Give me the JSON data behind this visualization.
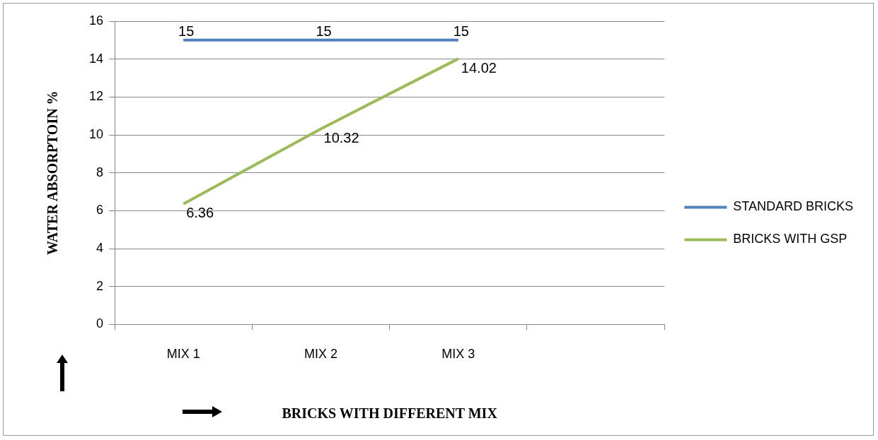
{
  "chart_data": {
    "type": "line",
    "xlabel": "BRICKS WITH DIFFERENT MIX",
    "ylabel": "WATER ABSORPTOIN %",
    "categories": [
      "MIX 1",
      "MIX 2",
      "MIX 3",
      null
    ],
    "series": [
      {
        "name": "STANDARD BRICKS",
        "color": "#4f81bd",
        "values": [
          15,
          15,
          15,
          null
        ]
      },
      {
        "name": "BRICKS WITH GSP",
        "color": "#9bbb59",
        "values": [
          6.36,
          10.32,
          14.02,
          null
        ]
      }
    ],
    "ylim": [
      0,
      16
    ],
    "yticks": [
      0,
      2,
      4,
      6,
      8,
      10,
      12,
      14,
      16
    ],
    "grid": "y",
    "legend": "right",
    "marker": "none",
    "line_style": "solid",
    "data_labels": true
  }
}
